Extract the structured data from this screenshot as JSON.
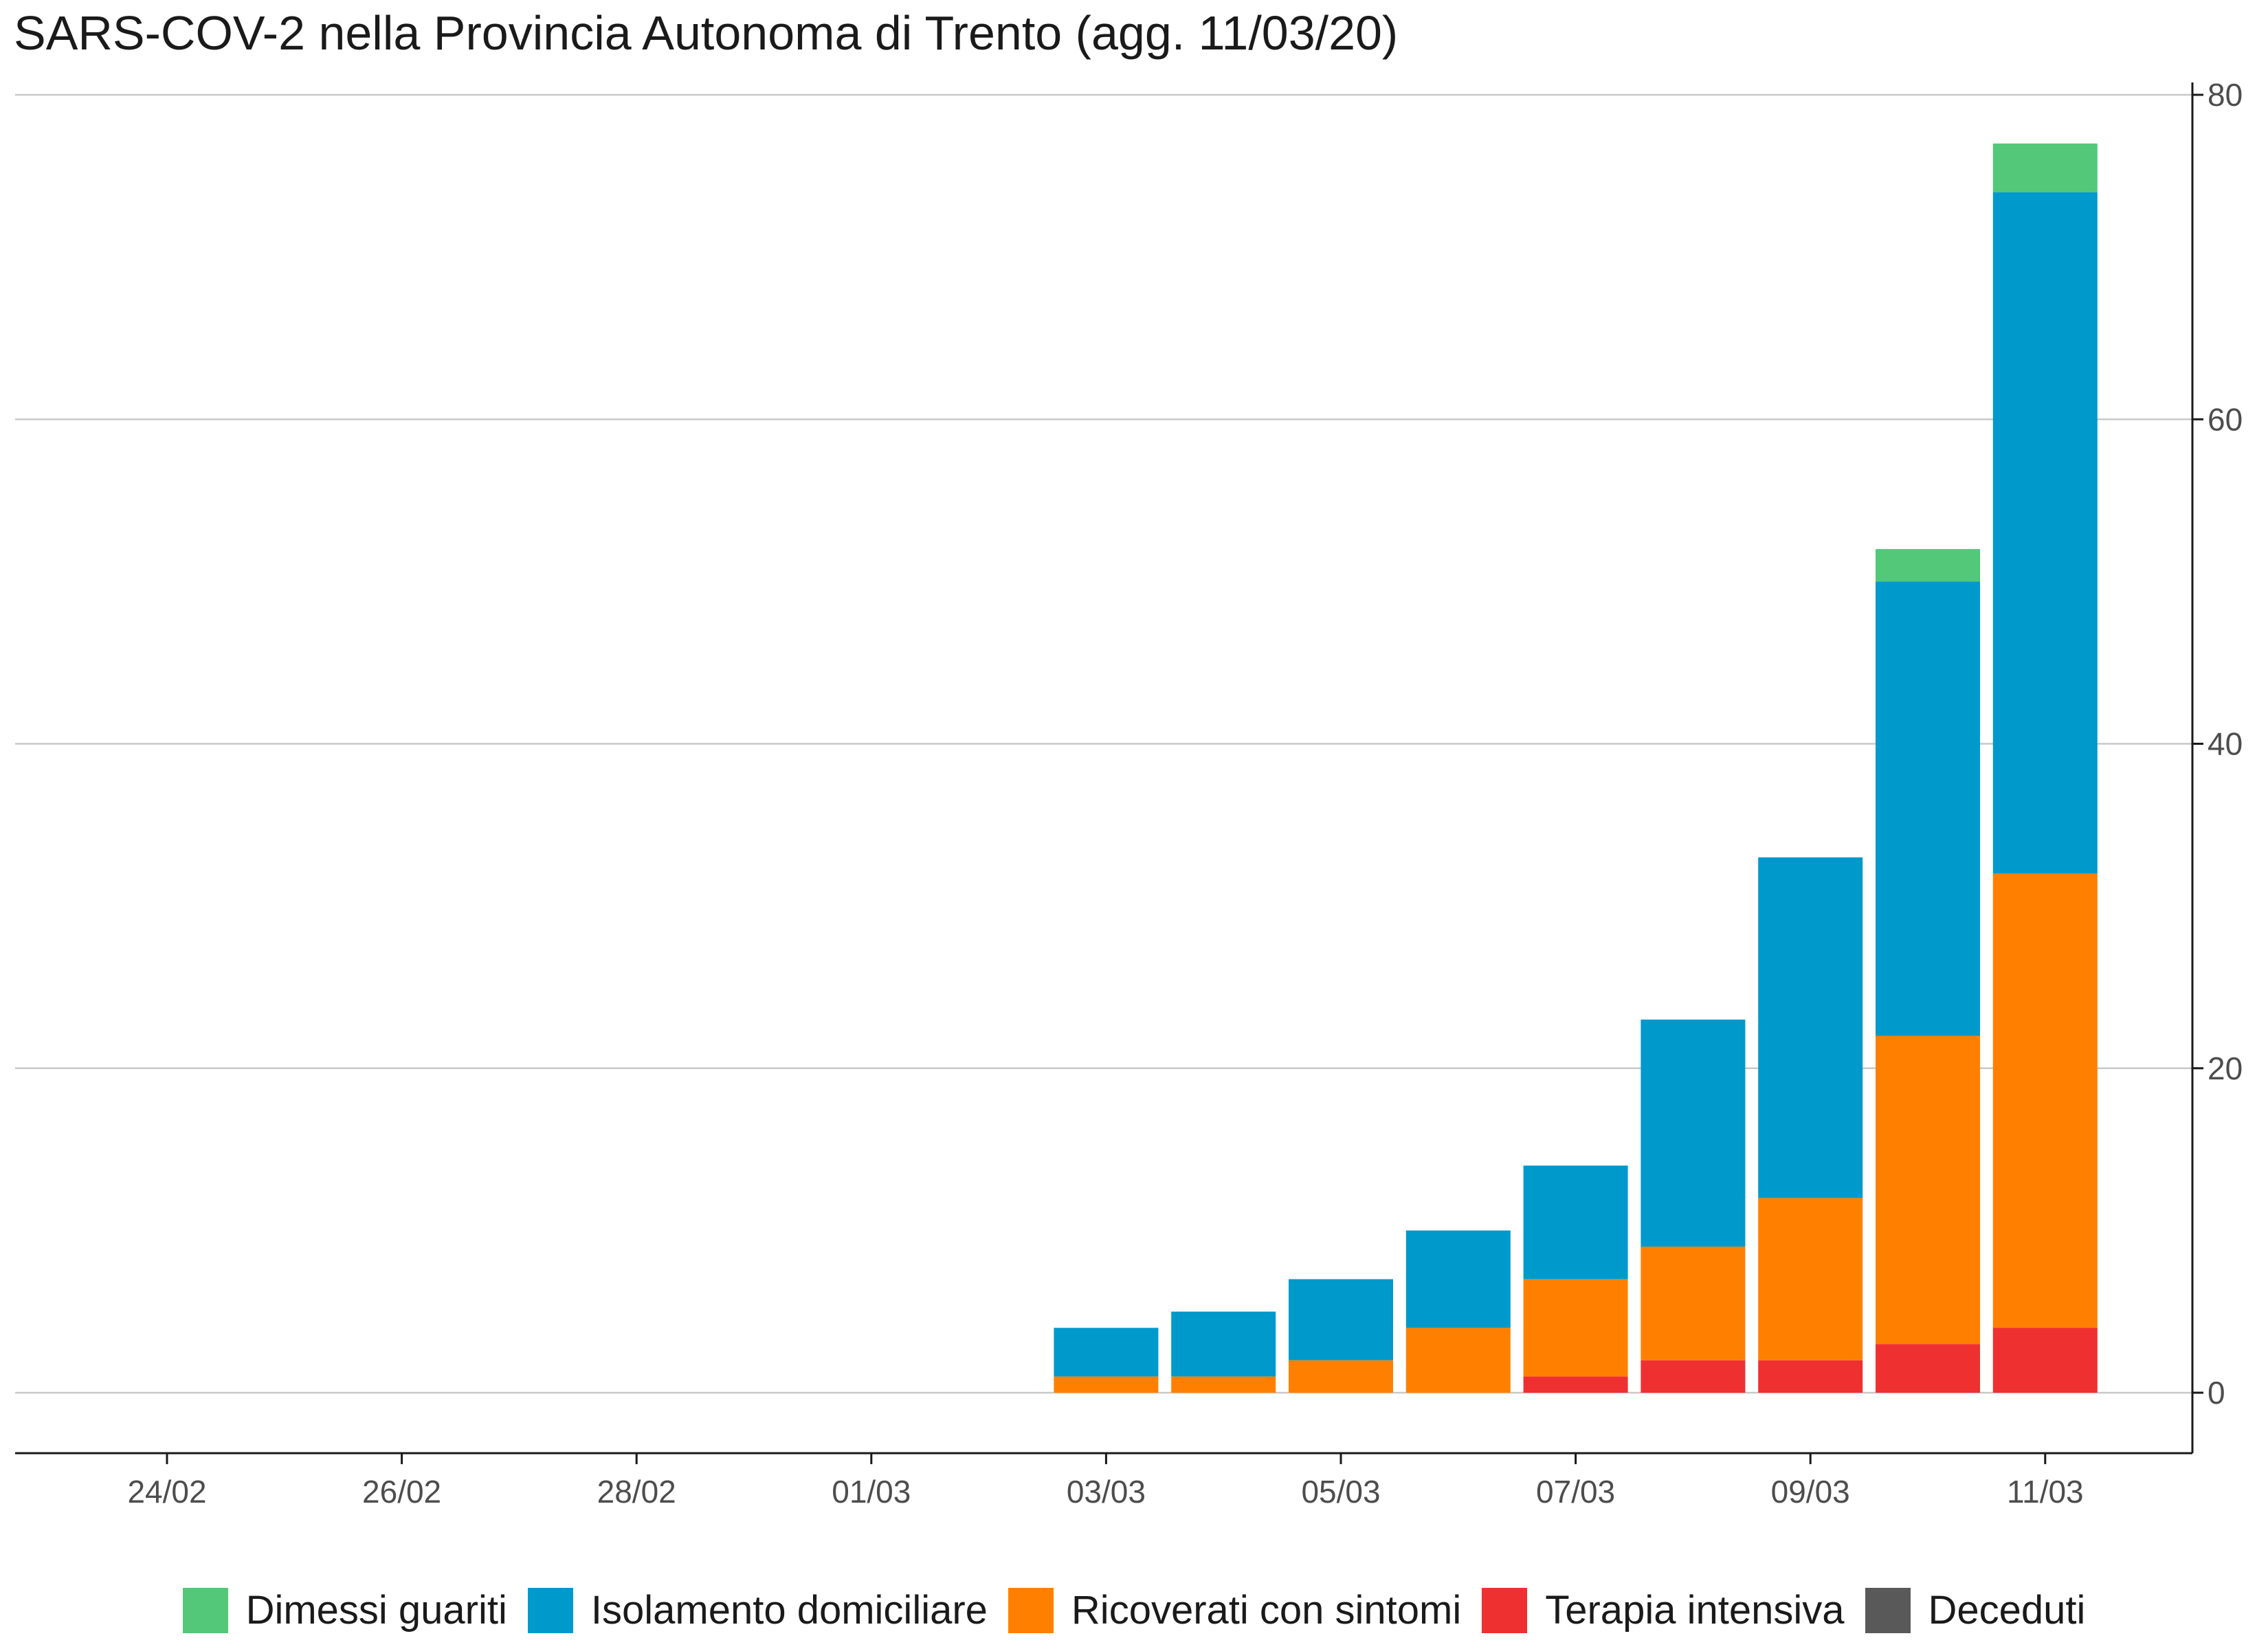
{
  "chart_data": {
    "type": "bar",
    "stacked": true,
    "title": "SARS-COV-2 nella Provincia Autonoma di Trento (agg. 11/03/20)",
    "xlabel": "",
    "ylabel": "",
    "categories": [
      "24/02",
      "25/02",
      "26/02",
      "27/02",
      "28/02",
      "29/02",
      "01/03",
      "02/03",
      "03/03",
      "04/03",
      "05/03",
      "06/03",
      "07/03",
      "08/03",
      "09/03",
      "10/03",
      "11/03"
    ],
    "x_tick_labels": [
      "24/02",
      "26/02",
      "28/02",
      "01/03",
      "03/03",
      "05/03",
      "07/03",
      "09/03",
      "11/03"
    ],
    "y_tick_labels": [
      "0",
      "20",
      "40",
      "60",
      "80"
    ],
    "ylim": [
      -4,
      80
    ],
    "y_axis_position": "right",
    "grid": "horizontal",
    "legend_position": "bottom",
    "series": [
      {
        "name": "Terapia intensiva",
        "color": "#ef3030",
        "values": [
          0,
          0,
          0,
          0,
          0,
          0,
          0,
          0,
          0,
          0,
          0,
          0,
          1,
          2,
          2,
          3,
          4
        ]
      },
      {
        "name": "Ricoverati con sintomi",
        "color": "#ff8000",
        "values": [
          0,
          0,
          0,
          0,
          0,
          0,
          0,
          0,
          1,
          1,
          2,
          4,
          6,
          7,
          10,
          19,
          28
        ]
      },
      {
        "name": "Isolamento domiciliare",
        "color": "#0099cc",
        "values": [
          0,
          0,
          0,
          0,
          0,
          0,
          0,
          0,
          3,
          4,
          5,
          6,
          7,
          14,
          21,
          28,
          42
        ]
      },
      {
        "name": "Dimessi guariti",
        "color": "#52c878",
        "values": [
          0,
          0,
          0,
          0,
          0,
          0,
          0,
          0,
          0,
          0,
          0,
          0,
          0,
          0,
          0,
          2,
          3
        ]
      },
      {
        "name": "Deceduti",
        "color": "#595959",
        "values": [
          0,
          0,
          0,
          0,
          0,
          0,
          0,
          0,
          0,
          0,
          0,
          0,
          0,
          0,
          0,
          0,
          0
        ]
      }
    ],
    "legend": [
      {
        "name": "Dimessi guariti",
        "color": "#52c878"
      },
      {
        "name": "Isolamento domiciliare",
        "color": "#0099cc"
      },
      {
        "name": "Ricoverati con sintomi",
        "color": "#ff8000"
      },
      {
        "name": "Terapia intensiva",
        "color": "#ef3030"
      },
      {
        "name": "Deceduti",
        "color": "#595959"
      }
    ]
  }
}
